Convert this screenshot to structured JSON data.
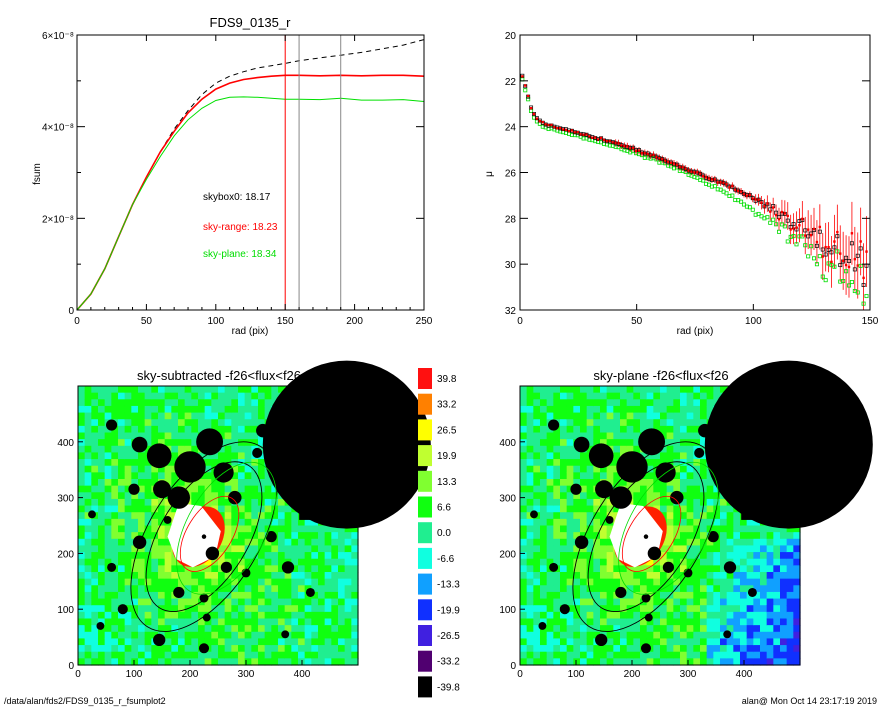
{
  "chart_data": [
    {
      "type": "line",
      "title": "FDS9_0135_r",
      "xlabel": "rad (pix)",
      "ylabel": "fsum",
      "xlim": [
        0,
        250
      ],
      "ylim": [
        0,
        6e-08
      ],
      "xticks": [
        "0",
        "50",
        "100",
        "150",
        "200",
        "250"
      ],
      "yticks": [
        {
          "v": 0,
          "label": "0"
        },
        {
          "v": 2e-08,
          "label": "2×10⁻⁸"
        },
        {
          "v": 4e-08,
          "label": "4×10⁻⁸"
        },
        {
          "v": 6e-08,
          "label": "6×10⁻⁸"
        }
      ],
      "series": [
        {
          "color": "#000000",
          "dashed": true,
          "x": [
            0,
            10,
            20,
            30,
            40,
            50,
            60,
            70,
            80,
            90,
            100,
            110,
            120,
            130,
            140,
            150,
            160,
            175,
            190,
            205,
            220,
            235,
            250
          ],
          "y": [
            0,
            3.5e-09,
            9e-09,
            1.6e-08,
            2.3e-08,
            2.9e-08,
            3.45e-08,
            3.95e-08,
            4.35e-08,
            4.7e-08,
            4.95e-08,
            5.1e-08,
            5.2e-08,
            5.28e-08,
            5.33e-08,
            5.38e-08,
            5.44e-08,
            5.5e-08,
            5.56e-08,
            5.62e-08,
            5.7e-08,
            5.78e-08,
            5.9e-08
          ]
        },
        {
          "color": "#ff0000",
          "dashed": false,
          "x": [
            0,
            10,
            20,
            30,
            40,
            50,
            60,
            70,
            80,
            90,
            100,
            110,
            120,
            130,
            140,
            150,
            160,
            175,
            190,
            205,
            220,
            235,
            250
          ],
          "y": [
            0,
            3.5e-09,
            9e-09,
            1.6e-08,
            2.3e-08,
            2.9e-08,
            3.45e-08,
            3.9e-08,
            4.3e-08,
            4.6e-08,
            4.82e-08,
            4.95e-08,
            5.03e-08,
            5.07e-08,
            5.1e-08,
            5.12e-08,
            5.12e-08,
            5.11e-08,
            5.12e-08,
            5.11e-08,
            5.12e-08,
            5.12e-08,
            5.1e-08
          ]
        },
        {
          "color": "#00e000",
          "dashed": false,
          "x": [
            0,
            10,
            20,
            30,
            40,
            50,
            60,
            70,
            80,
            90,
            100,
            110,
            120,
            130,
            140,
            150,
            160,
            175,
            190,
            205,
            220,
            235,
            250
          ],
          "y": [
            0,
            3.5e-09,
            9e-09,
            1.6e-08,
            2.3e-08,
            2.85e-08,
            3.35e-08,
            3.8e-08,
            4.15e-08,
            4.4e-08,
            4.57e-08,
            4.64e-08,
            4.65e-08,
            4.64e-08,
            4.62e-08,
            4.6e-08,
            4.6e-08,
            4.59e-08,
            4.62e-08,
            4.58e-08,
            4.58e-08,
            4.59e-08,
            4.55e-08
          ]
        }
      ],
      "vlines": [
        {
          "x": 150,
          "color": "#ff0000"
        },
        {
          "x": 160,
          "color": "#888888"
        },
        {
          "x": 190,
          "color": "#888888"
        }
      ],
      "annotations": [
        {
          "text": "skybox0: 18.17",
          "color": "#000000"
        },
        {
          "text": "sky-range: 18.23",
          "color": "#ff0000"
        },
        {
          "text": "sky-plane: 18.34",
          "color": "#00dd00"
        }
      ]
    },
    {
      "type": "scatter",
      "xlabel": "rad (pix)",
      "ylabel": "μ",
      "xlim": [
        0,
        150
      ],
      "ylim": [
        32,
        20
      ],
      "xticks": [
        "0",
        "50",
        "100",
        "150"
      ],
      "yticks": [
        "20",
        "22",
        "24",
        "26",
        "28",
        "30",
        "32"
      ],
      "profile": {
        "x": [
          1,
          2,
          3,
          4,
          5,
          6,
          8,
          10,
          15,
          20,
          30,
          40,
          50,
          60,
          70,
          80,
          90,
          100,
          105,
          110,
          115,
          120,
          125,
          130,
          135,
          140,
          145,
          150
        ],
        "y": [
          21.8,
          22.1,
          22.5,
          22.9,
          23.2,
          23.45,
          23.7,
          23.85,
          24.0,
          24.15,
          24.4,
          24.7,
          25.0,
          25.4,
          25.8,
          26.2,
          26.6,
          27.1,
          27.4,
          27.7,
          28.0,
          28.4,
          28.7,
          29.0,
          29.3,
          29.6,
          30.0,
          30.4
        ]
      },
      "series": [
        {
          "name": "",
          "color": "#000000",
          "marker": "open-square"
        },
        {
          "name": "",
          "color": "#ff0000",
          "marker": "errorbar"
        },
        {
          "name": "",
          "color": "#00dd00",
          "marker": "open-square"
        }
      ]
    },
    {
      "type": "heatmap",
      "title": "sky-subtracted -f26<flux<f26",
      "xlim": [
        0,
        500
      ],
      "ylim": [
        0,
        500
      ],
      "xticks": [
        "0",
        "100",
        "200",
        "300",
        "400"
      ],
      "yticks": [
        "0",
        "100",
        "200",
        "300",
        "400"
      ]
    },
    {
      "type": "heatmap",
      "title": "sky-plane -f26<flux<f26",
      "xlim": [
        0,
        500
      ],
      "ylim": [
        0,
        500
      ],
      "xticks": [
        "0",
        "100",
        "200",
        "300",
        "400"
      ],
      "yticks": [
        "0",
        "100",
        "200",
        "300",
        "400"
      ]
    }
  ],
  "colorbar": {
    "labels": [
      "39.8",
      "33.2",
      "26.5",
      "19.9",
      "13.3",
      "6.6",
      "0.0",
      "-6.6",
      "-13.3",
      "-19.9",
      "-26.5",
      "-33.2",
      "-39.8"
    ],
    "colors": [
      "#ff1010",
      "#ff8000",
      "#ffff00",
      "#c0ff30",
      "#80ff30",
      "#10ff10",
      "#20ee90",
      "#10ffe0",
      "#10a0ff",
      "#1030ff",
      "#4020e0",
      "#500070",
      "#000000"
    ]
  },
  "footer": {
    "left": "/data/alan/fds2/FDS9_0135_r_fsumplot2",
    "right": "alan@  Mon Oct 14 23:17:19 2019"
  }
}
